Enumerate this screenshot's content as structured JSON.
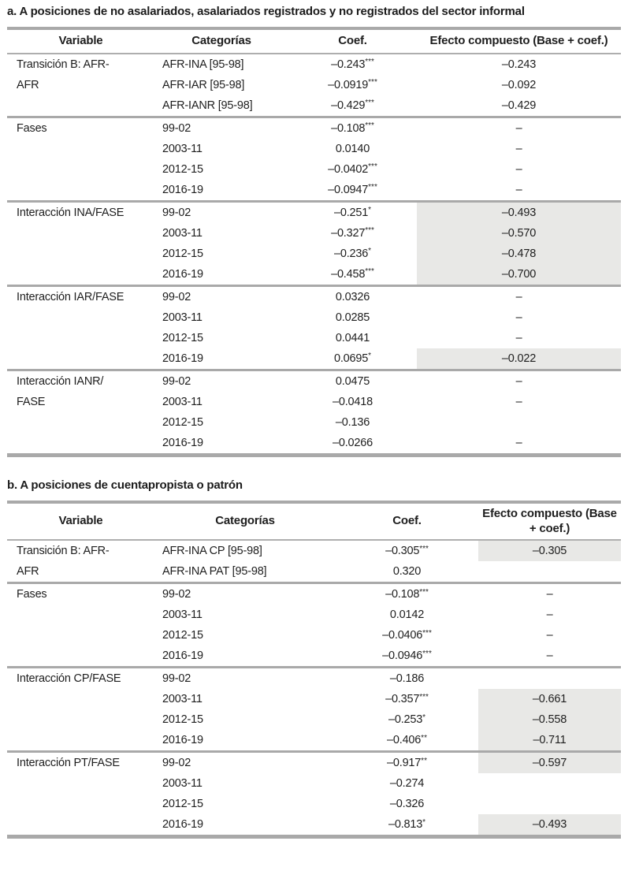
{
  "colors": {
    "shaded_cell": "#e8e8e6",
    "rule_gray": "#a9a9a9",
    "text": "#1e1e1e"
  },
  "tables": [
    {
      "id": "a",
      "title": "a. A posiciones de no asalariados, asalariados registrados y no registrados del sector informal",
      "headers": [
        "Variable",
        "Categorías",
        "Coef.",
        "Efecto compuesto (Base + coef.)"
      ],
      "groups": [
        {
          "variable": "Transición B: AFR-\nAFR",
          "rows": [
            {
              "categoria": "AFR-INA [95-98]",
              "coef": "–0.243",
              "stars": "***",
              "efecto": "–0.243",
              "shaded": false
            },
            {
              "categoria": "AFR-IAR [95-98]",
              "coef": "–0.0919",
              "stars": "***",
              "efecto": "–0.092",
              "shaded": false
            },
            {
              "categoria": "AFR-IANR [95-98]",
              "coef": "–0.429",
              "stars": "***",
              "efecto": "–0.429",
              "shaded": false
            }
          ]
        },
        {
          "variable": "Fases",
          "rows": [
            {
              "categoria": "99-02",
              "coef": "–0.108",
              "stars": "***",
              "efecto": "–",
              "shaded": false
            },
            {
              "categoria": "2003-11",
              "coef": "0.0140",
              "stars": "",
              "efecto": "–",
              "shaded": false
            },
            {
              "categoria": "2012-15",
              "coef": "–0.0402",
              "stars": "***",
              "efecto": "–",
              "shaded": false
            },
            {
              "categoria": "2016-19",
              "coef": "–0.0947",
              "stars": "***",
              "efecto": "–",
              "shaded": false
            }
          ]
        },
        {
          "variable": "Interacción INA/FASE",
          "rows": [
            {
              "categoria": "99-02",
              "coef": "–0.251",
              "stars": "*",
              "efecto": "–0.493",
              "shaded": true
            },
            {
              "categoria": "2003-11",
              "coef": "–0.327",
              "stars": "***",
              "efecto": "–0.570",
              "shaded": true
            },
            {
              "categoria": "2012-15",
              "coef": "–0.236",
              "stars": "*",
              "efecto": "–0.478",
              "shaded": true
            },
            {
              "categoria": "2016-19",
              "coef": "–0.458",
              "stars": "***",
              "efecto": "–0.700",
              "shaded": true
            }
          ]
        },
        {
          "variable": "Interacción IAR/FASE",
          "rows": [
            {
              "categoria": "99-02",
              "coef": "0.0326",
              "stars": "",
              "efecto": "–",
              "shaded": false
            },
            {
              "categoria": "2003-11",
              "coef": "0.0285",
              "stars": "",
              "efecto": "–",
              "shaded": false
            },
            {
              "categoria": "2012-15",
              "coef": "0.0441",
              "stars": "",
              "efecto": "–",
              "shaded": false
            },
            {
              "categoria": "2016-19",
              "coef": "0.0695",
              "stars": "*",
              "efecto": "–0.022",
              "shaded": true
            }
          ]
        },
        {
          "variable": "Interacción IANR/\nFASE",
          "rows": [
            {
              "categoria": "99-02",
              "coef": "0.0475",
              "stars": "",
              "efecto": "–",
              "shaded": false
            },
            {
              "categoria": "2003-11",
              "coef": "–0.0418",
              "stars": "",
              "efecto": "–",
              "shaded": false
            },
            {
              "categoria": "2012-15",
              "coef": "–0.136",
              "stars": "",
              "efecto": "",
              "shaded": false
            },
            {
              "categoria": "2016-19",
              "coef": "–0.0266",
              "stars": "",
              "efecto": "–",
              "shaded": false
            }
          ]
        }
      ]
    },
    {
      "id": "b",
      "title": "b. A posiciones de cuentapropista o patrón",
      "headers": [
        "Variable",
        "Categorías",
        "Coef.",
        "Efecto compuesto (Base + coef.)"
      ],
      "groups": [
        {
          "variable": "Transición B: AFR-\nAFR",
          "rows": [
            {
              "categoria": "AFR-INA CP [95-98]",
              "coef": "–0.305",
              "stars": "***",
              "efecto": "–0.305",
              "shaded": true
            },
            {
              "categoria": "AFR-INA PAT [95-98]",
              "coef": "0.320",
              "stars": "",
              "efecto": "",
              "shaded": false
            }
          ]
        },
        {
          "variable": "Fases",
          "rows": [
            {
              "categoria": "99-02",
              "coef": "–0.108",
              "stars": "***",
              "efecto": "–",
              "shaded": false
            },
            {
              "categoria": "2003-11",
              "coef": "0.0142",
              "stars": "",
              "efecto": "–",
              "shaded": false
            },
            {
              "categoria": "2012-15",
              "coef": "–0.0406",
              "stars": "***",
              "efecto": "–",
              "shaded": false
            },
            {
              "categoria": "2016-19",
              "coef": "–0.0946",
              "stars": "***",
              "efecto": "–",
              "shaded": false
            }
          ]
        },
        {
          "variable": "Interacción CP/FASE",
          "rows": [
            {
              "categoria": "99-02",
              "coef": "–0.186",
              "stars": "",
              "efecto": "",
              "shaded": false
            },
            {
              "categoria": "2003-11",
              "coef": "–0.357",
              "stars": "***",
              "efecto": "–0.661",
              "shaded": true
            },
            {
              "categoria": "2012-15",
              "coef": "–0.253",
              "stars": "*",
              "efecto": "–0.558",
              "shaded": true
            },
            {
              "categoria": "2016-19",
              "coef": "–0.406",
              "stars": "**",
              "efecto": "–0.711",
              "shaded": true
            }
          ]
        },
        {
          "variable": "Interacción PT/FASE",
          "rows": [
            {
              "categoria": "99-02",
              "coef": "–0.917",
              "stars": "**",
              "efecto": "–0.597",
              "shaded": true
            },
            {
              "categoria": "2003-11",
              "coef": "–0.274",
              "stars": "",
              "efecto": "",
              "shaded": false
            },
            {
              "categoria": "2012-15",
              "coef": "–0.326",
              "stars": "",
              "efecto": "",
              "shaded": false
            },
            {
              "categoria": "2016-19",
              "coef": "–0.813",
              "stars": "*",
              "efecto": "–0.493",
              "shaded": true
            }
          ]
        }
      ]
    }
  ]
}
